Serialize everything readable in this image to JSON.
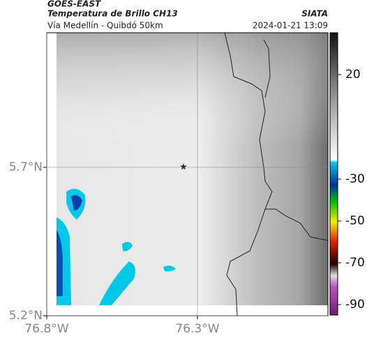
{
  "header": {
    "source": "GOES-EAST",
    "title": "Temperatura de Brillo CH13",
    "brand": "SIATA",
    "subtitle": "Vía Medellín - Quibdó 50km",
    "timestamp": "2024-01-21 13:09"
  },
  "map": {
    "latlim": [
      5.2,
      6.153
    ],
    "lonlim": [
      -76.8,
      -75.867
    ],
    "latticks": [
      {
        "value": 5.7,
        "label": "5.7°N"
      },
      {
        "value": 5.2,
        "label": "5.2°N"
      }
    ],
    "lonticks": [
      {
        "value": -76.8,
        "label": "76.8°W"
      },
      {
        "value": -76.3,
        "label": "76.3°W"
      }
    ],
    "grid": true
  },
  "colorbar": {
    "lim": [
      40,
      -95
    ],
    "ticks": [
      20,
      -30,
      -50,
      -70,
      -90
    ]
  }
}
